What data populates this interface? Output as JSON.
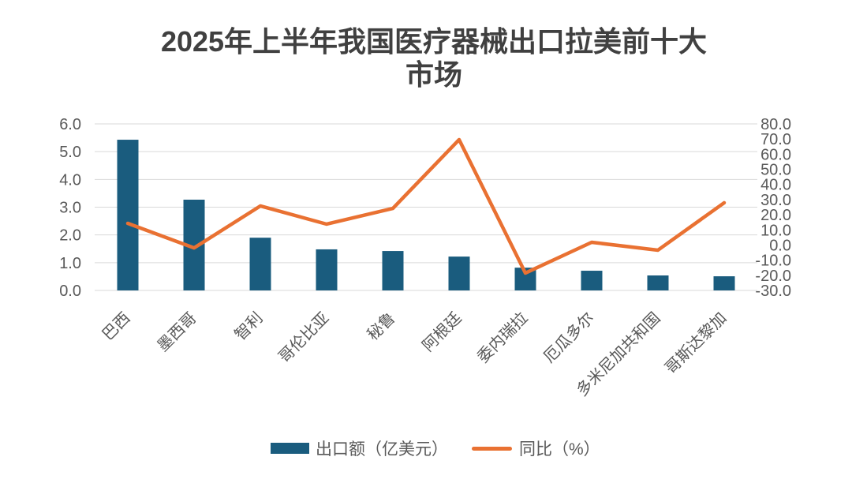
{
  "chart_data": {
    "type": "bar",
    "title": "2025年上半年我国医疗器械出口拉美前十大市场",
    "categories": [
      "巴西",
      "墨西哥",
      "智利",
      "哥伦比亚",
      "秘鲁",
      "阿根廷",
      "委内瑞拉",
      "厄瓜多尔",
      "多米尼加共和国",
      "哥斯达黎加"
    ],
    "series": [
      {
        "name": "出口额（亿美元）",
        "type": "bar",
        "axis": "left",
        "values": [
          5.43,
          3.27,
          1.9,
          1.48,
          1.42,
          1.22,
          0.82,
          0.71,
          0.54,
          0.51
        ]
      },
      {
        "name": "同比（%）",
        "type": "line",
        "axis": "right",
        "values": [
          14.3,
          -1.9,
          25.8,
          13.8,
          24.2,
          69.6,
          -18.5,
          1.8,
          -3.4,
          27.9
        ]
      }
    ],
    "y_axis": {
      "min": 0,
      "max": 6,
      "ticks": [
        "0.0",
        "1.0",
        "2.0",
        "3.0",
        "4.0",
        "5.0",
        "6.0"
      ]
    },
    "y2_axis": {
      "min": -30,
      "max": 80,
      "ticks": [
        "-30.0",
        "-20.0",
        "-10.0",
        "0.0",
        "10.0",
        "20.0",
        "30.0",
        "40.0",
        "50.0",
        "60.0",
        "70.0",
        "80.0"
      ]
    },
    "xlabel": "",
    "ylabel": "",
    "grid": true,
    "legend": "bottom",
    "colors": {
      "bar": "#1a5c7e",
      "line": "#e97132",
      "title": "#404040",
      "text": "#595959",
      "grid": "#d9d9d9"
    }
  }
}
